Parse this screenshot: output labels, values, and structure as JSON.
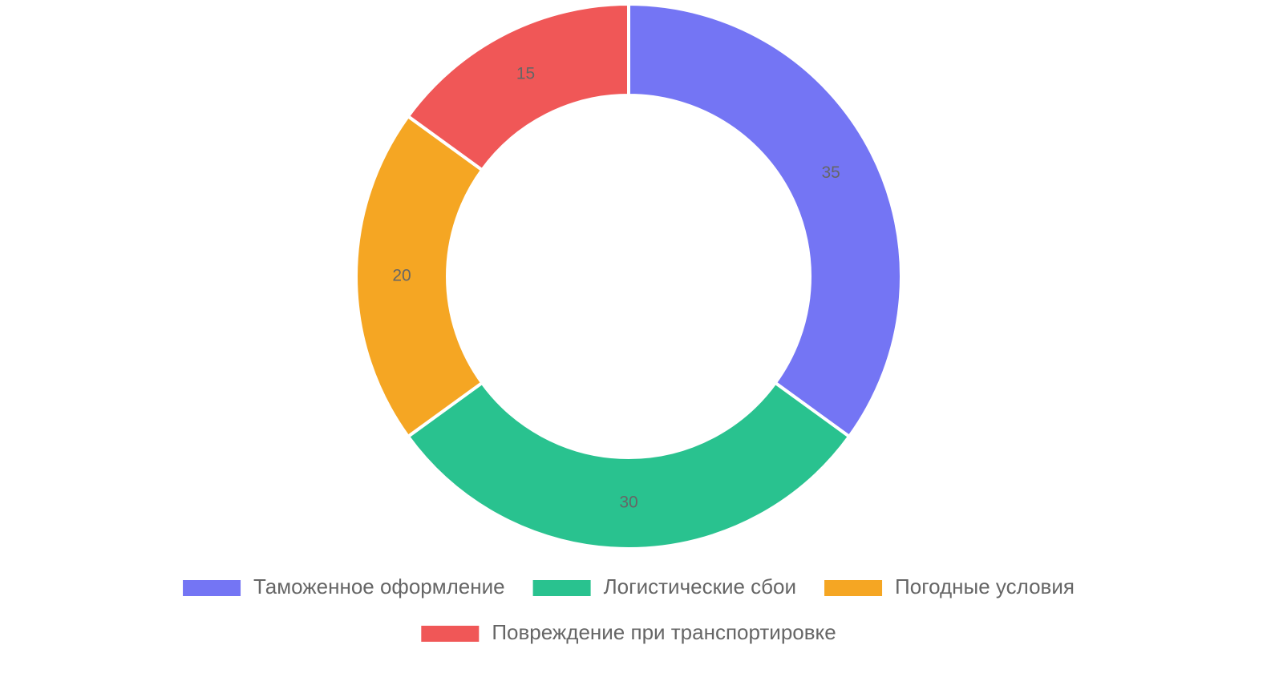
{
  "chart_data": {
    "type": "doughnut",
    "categories": [
      "Таможенное оформление",
      "Логистические сбои",
      "Погодные условия",
      "Повреждение при транспортировке"
    ],
    "values": [
      35,
      30,
      20,
      15
    ],
    "colors": [
      "#7475f4",
      "#29c28f",
      "#f5a623",
      "#f05757"
    ],
    "legend": "bottom"
  }
}
